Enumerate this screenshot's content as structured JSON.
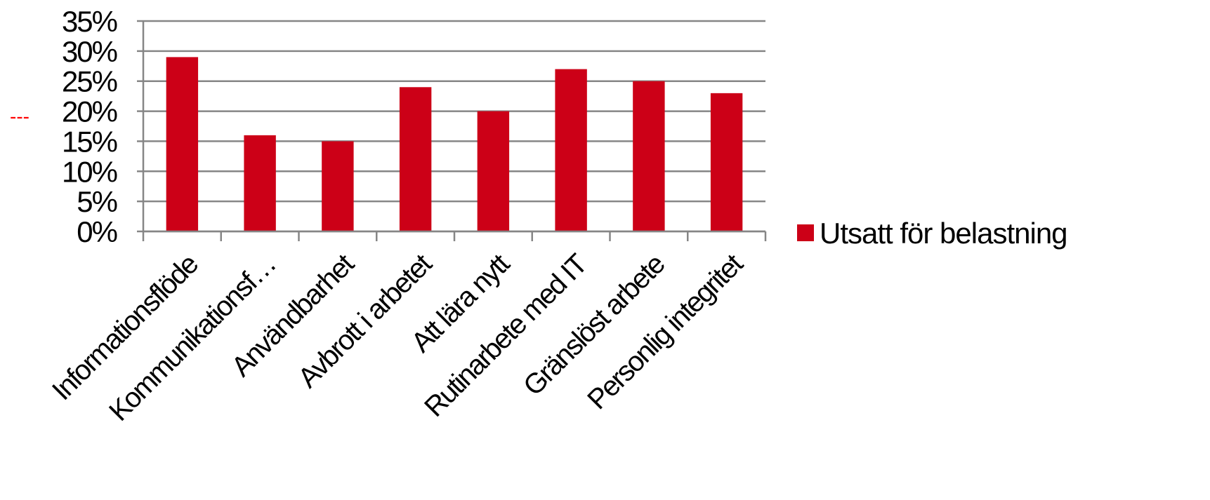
{
  "chart_data": {
    "type": "bar",
    "categories": [
      "Informationsflöde",
      "Kommunikationsf…",
      "Användbarhet",
      "Avbrott i arbetet",
      "Att lära nytt",
      "Rutinarbete med IT",
      "Gränslöst arbete",
      "Personlig integritet"
    ],
    "series": [
      {
        "name": "Utsatt för belastning",
        "values": [
          29,
          16,
          15,
          24,
          20,
          27,
          25,
          23
        ],
        "color": "#cc0017"
      }
    ],
    "y_ticks": [
      "0%",
      "5%",
      "10%",
      "15%",
      "20%",
      "25%",
      "30%",
      "35%"
    ],
    "ylim": [
      0,
      35
    ],
    "y_unit": "%",
    "grid": true,
    "legend_position": "right",
    "reference_marker": {
      "text": "---",
      "value": 20,
      "color": "#ff0000"
    }
  }
}
